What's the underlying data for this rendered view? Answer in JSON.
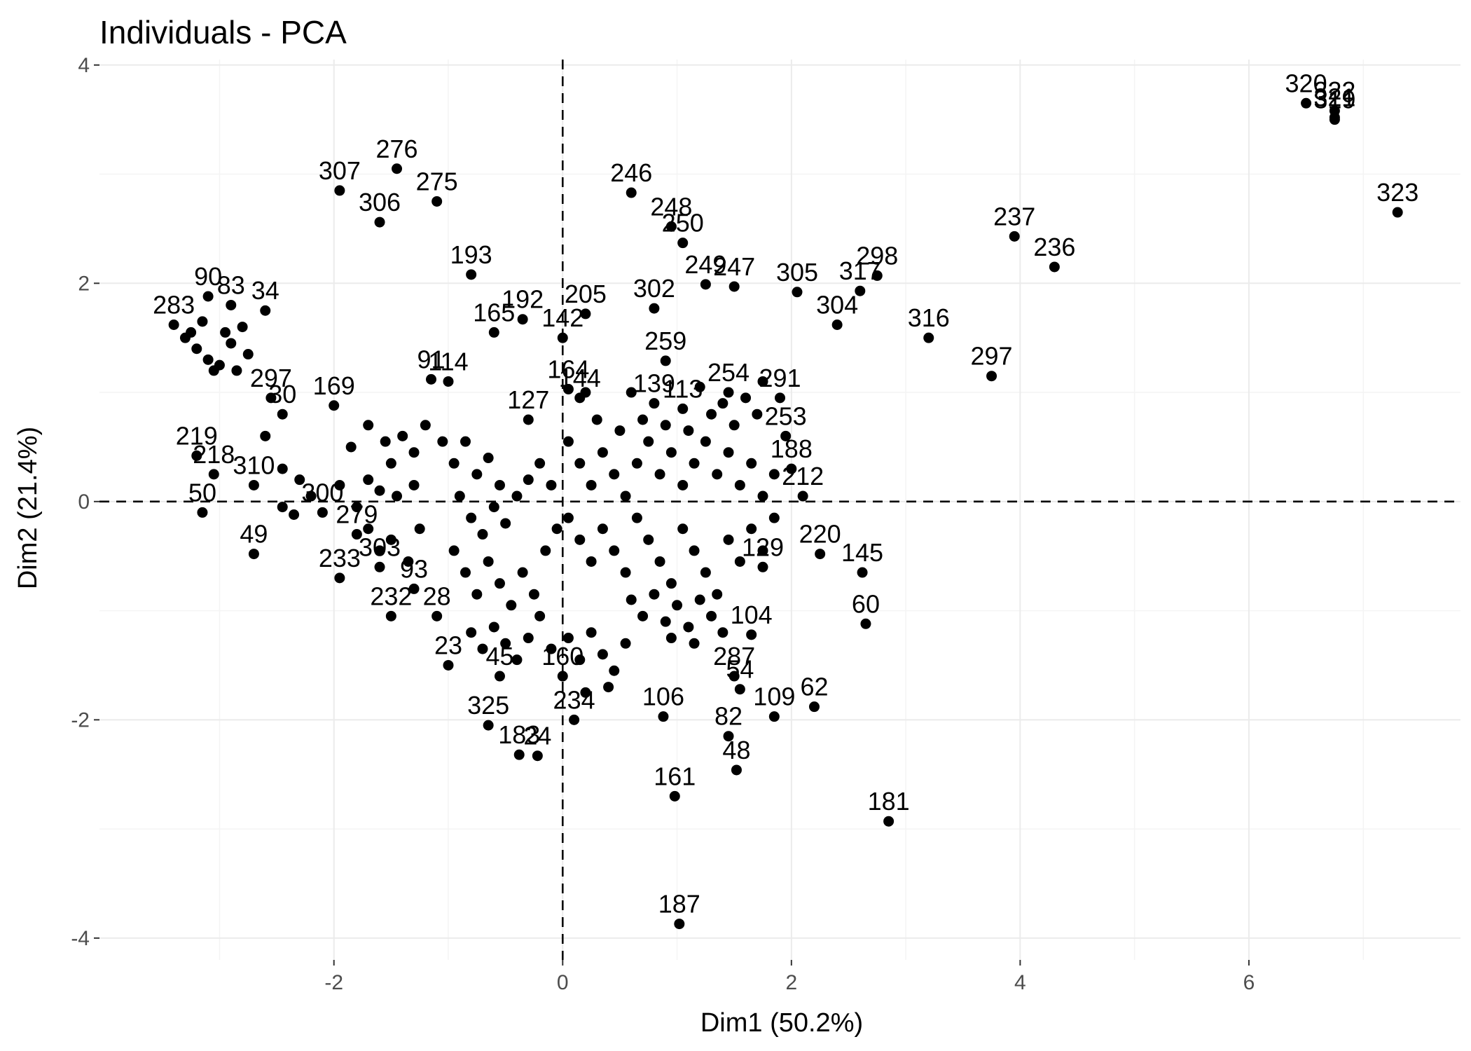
{
  "chart_data": {
    "type": "scatter",
    "title": "Individuals - PCA",
    "xlabel": "Dim1 (50.2%)",
    "ylabel": "Dim2 (21.4%)",
    "xlim": [
      -4.05,
      7.85
    ],
    "ylim": [
      -4.2,
      4.05
    ],
    "x_ticks": [
      -2,
      0,
      2,
      4,
      6
    ],
    "y_ticks": [
      -4,
      -2,
      0,
      2,
      4
    ],
    "x_tick_labels": [
      "-2",
      "0",
      "2",
      "4",
      "6"
    ],
    "y_tick_labels": [
      "-4",
      "-2",
      "0",
      "2",
      "4"
    ],
    "reference_lines": {
      "x": 0,
      "y": 0
    },
    "grid": true,
    "labeled_points": [
      {
        "label": "320",
        "x": 6.5,
        "y": 3.65
      },
      {
        "label": "322",
        "x": 6.75,
        "y": 3.58
      },
      {
        "label": "321",
        "x": 6.75,
        "y": 3.52
      },
      {
        "label": "319",
        "x": 6.75,
        "y": 3.5
      },
      {
        "label": "323",
        "x": 7.3,
        "y": 2.65
      },
      {
        "label": "237",
        "x": 3.95,
        "y": 2.43
      },
      {
        "label": "236",
        "x": 4.3,
        "y": 2.15
      },
      {
        "label": "298",
        "x": 2.75,
        "y": 2.07
      },
      {
        "label": "317",
        "x": 2.6,
        "y": 1.93
      },
      {
        "label": "305",
        "x": 2.05,
        "y": 1.92
      },
      {
        "label": "304",
        "x": 2.4,
        "y": 1.62
      },
      {
        "label": "316",
        "x": 3.2,
        "y": 1.5
      },
      {
        "label": "297",
        "x": 3.75,
        "y": 1.15
      },
      {
        "label": "246",
        "x": 0.6,
        "y": 2.83
      },
      {
        "label": "248",
        "x": 0.95,
        "y": 2.52
      },
      {
        "label": "250",
        "x": 1.05,
        "y": 2.37
      },
      {
        "label": "249",
        "x": 1.25,
        "y": 1.99
      },
      {
        "label": "247",
        "x": 1.5,
        "y": 1.97
      },
      {
        "label": "302",
        "x": 0.8,
        "y": 1.77
      },
      {
        "label": "259",
        "x": 0.9,
        "y": 1.29
      },
      {
        "label": "205",
        "x": 0.2,
        "y": 1.72
      },
      {
        "label": "192",
        "x": -0.35,
        "y": 1.67
      },
      {
        "label": "142",
        "x": 0.0,
        "y": 1.5
      },
      {
        "label": "165",
        "x": -0.6,
        "y": 1.55
      },
      {
        "label": "164",
        "x": 0.05,
        "y": 1.03
      },
      {
        "label": "193",
        "x": -0.8,
        "y": 2.08
      },
      {
        "label": "276",
        "x": -1.45,
        "y": 3.05
      },
      {
        "label": "307",
        "x": -1.95,
        "y": 2.85
      },
      {
        "label": "275",
        "x": -1.1,
        "y": 2.75
      },
      {
        "label": "306",
        "x": -1.6,
        "y": 2.56
      },
      {
        "label": "91",
        "x": -1.15,
        "y": 1.12
      },
      {
        "label": "90",
        "x": -3.1,
        "y": 1.88
      },
      {
        "label": "83",
        "x": -2.9,
        "y": 1.8
      },
      {
        "label": "34",
        "x": -2.6,
        "y": 1.75
      },
      {
        "label": "283",
        "x": -3.4,
        "y": 1.62
      },
      {
        "label": "219",
        "x": -3.2,
        "y": 0.42
      },
      {
        "label": "218",
        "x": -3.05,
        "y": 0.25
      },
      {
        "label": "310",
        "x": -2.7,
        "y": 0.15
      },
      {
        "label": "50",
        "x": -3.15,
        "y": -0.1
      },
      {
        "label": "49",
        "x": -2.7,
        "y": -0.48
      },
      {
        "label": "297b",
        "x": -2.55,
        "y": 0.95
      },
      {
        "label": "30",
        "x": -2.45,
        "y": 0.8
      },
      {
        "label": "169",
        "x": -2.0,
        "y": 0.88
      },
      {
        "label": "300",
        "x": -2.1,
        "y": -0.1
      },
      {
        "label": "279",
        "x": -1.8,
        "y": -0.3
      },
      {
        "label": "233",
        "x": -1.95,
        "y": -0.7
      },
      {
        "label": "232",
        "x": -1.5,
        "y": -1.05
      },
      {
        "label": "303",
        "x": -1.6,
        "y": -0.6
      },
      {
        "label": "93",
        "x": -1.3,
        "y": -0.8
      },
      {
        "label": "28",
        "x": -1.1,
        "y": -1.05
      },
      {
        "label": "23",
        "x": -1.0,
        "y": -1.5
      },
      {
        "label": "45",
        "x": -0.55,
        "y": -1.6
      },
      {
        "label": "325",
        "x": -0.65,
        "y": -2.05
      },
      {
        "label": "183",
        "x": -0.38,
        "y": -2.32
      },
      {
        "label": "24",
        "x": -0.22,
        "y": -2.33
      },
      {
        "label": "234",
        "x": 0.1,
        "y": -2.0
      },
      {
        "label": "160",
        "x": 0.0,
        "y": -1.6
      },
      {
        "label": "106",
        "x": 0.88,
        "y": -1.97
      },
      {
        "label": "161",
        "x": 0.98,
        "y": -2.7
      },
      {
        "label": "187",
        "x": 1.02,
        "y": -3.87
      },
      {
        "label": "82",
        "x": 1.45,
        "y": -2.15
      },
      {
        "label": "48",
        "x": 1.52,
        "y": -2.46
      },
      {
        "label": "109",
        "x": 1.85,
        "y": -1.97
      },
      {
        "label": "62",
        "x": 2.2,
        "y": -1.88
      },
      {
        "label": "104",
        "x": 1.65,
        "y": -1.22
      },
      {
        "label": "181",
        "x": 2.85,
        "y": -2.93
      },
      {
        "label": "145",
        "x": 2.62,
        "y": -0.65
      },
      {
        "label": "60",
        "x": 2.65,
        "y": -1.12
      },
      {
        "label": "220",
        "x": 2.25,
        "y": -0.48
      },
      {
        "label": "188",
        "x": 2.0,
        "y": 0.3
      },
      {
        "label": "212",
        "x": 2.1,
        "y": 0.05
      },
      {
        "label": "253",
        "x": 1.95,
        "y": 0.6
      },
      {
        "label": "291",
        "x": 1.9,
        "y": 0.95
      },
      {
        "label": "254",
        "x": 1.45,
        "y": 1.0
      },
      {
        "label": "129",
        "x": 1.75,
        "y": -0.6
      },
      {
        "label": "287",
        "x": 1.5,
        "y": -1.6
      },
      {
        "label": "54",
        "x": 1.55,
        "y": -1.72
      },
      {
        "label": "114",
        "x": -1.0,
        "y": 1.1
      },
      {
        "label": "127",
        "x": -0.3,
        "y": 0.75
      },
      {
        "label": "144",
        "x": 0.15,
        "y": 0.95
      },
      {
        "label": "139",
        "x": 0.8,
        "y": 0.9
      },
      {
        "label": "113",
        "x": 1.05,
        "y": 0.85
      }
    ],
    "unlabeled_points": [
      [
        -3.3,
        1.5
      ],
      [
        -3.2,
        1.4
      ],
      [
        -3.1,
        1.3
      ],
      [
        -3.0,
        1.25
      ],
      [
        -2.95,
        1.55
      ],
      [
        -2.8,
        1.6
      ],
      [
        -3.05,
        1.2
      ],
      [
        -2.85,
        1.2
      ],
      [
        -3.15,
        1.65
      ],
      [
        -2.75,
        1.35
      ],
      [
        -3.25,
        1.55
      ],
      [
        -2.9,
        1.45
      ],
      [
        -2.6,
        0.6
      ],
      [
        -2.45,
        0.3
      ],
      [
        -2.3,
        0.2
      ],
      [
        -2.45,
        -0.05
      ],
      [
        -2.35,
        -0.12
      ],
      [
        -2.2,
        0.05
      ],
      [
        -1.95,
        0.15
      ],
      [
        -1.85,
        0.5
      ],
      [
        -1.7,
        0.7
      ],
      [
        -1.55,
        0.55
      ],
      [
        -1.5,
        0.35
      ],
      [
        -1.4,
        0.6
      ],
      [
        -1.3,
        0.45
      ],
      [
        -1.2,
        0.7
      ],
      [
        -1.7,
        0.2
      ],
      [
        -1.6,
        0.1
      ],
      [
        -1.45,
        0.05
      ],
      [
        -1.3,
        0.15
      ],
      [
        -1.8,
        -0.05
      ],
      [
        -1.7,
        -0.25
      ],
      [
        -1.6,
        -0.45
      ],
      [
        -1.5,
        -0.35
      ],
      [
        -1.35,
        -0.55
      ],
      [
        -1.25,
        -0.25
      ],
      [
        -1.05,
        0.55
      ],
      [
        -0.95,
        0.35
      ],
      [
        -0.85,
        0.55
      ],
      [
        -0.75,
        0.25
      ],
      [
        -0.65,
        0.4
      ],
      [
        -0.55,
        0.15
      ],
      [
        -0.9,
        0.05
      ],
      [
        -0.8,
        -0.15
      ],
      [
        -0.7,
        -0.3
      ],
      [
        -0.6,
        -0.05
      ],
      [
        -0.5,
        -0.2
      ],
      [
        -0.4,
        0.05
      ],
      [
        -0.3,
        0.2
      ],
      [
        -0.2,
        0.35
      ],
      [
        -0.1,
        0.15
      ],
      [
        -0.95,
        -0.45
      ],
      [
        -0.85,
        -0.65
      ],
      [
        -0.75,
        -0.85
      ],
      [
        -0.65,
        -0.55
      ],
      [
        -0.55,
        -0.75
      ],
      [
        -0.45,
        -0.95
      ],
      [
        -0.35,
        -0.65
      ],
      [
        -0.25,
        -0.85
      ],
      [
        -0.15,
        -0.45
      ],
      [
        -0.05,
        -0.25
      ],
      [
        -0.8,
        -1.2
      ],
      [
        -0.7,
        -1.35
      ],
      [
        -0.6,
        -1.15
      ],
      [
        -0.5,
        -1.3
      ],
      [
        -0.4,
        -1.45
      ],
      [
        -0.3,
        -1.25
      ],
      [
        -0.2,
        -1.05
      ],
      [
        -0.1,
        -1.35
      ],
      [
        0.05,
        -1.25
      ],
      [
        0.15,
        -1.45
      ],
      [
        0.25,
        -1.2
      ],
      [
        0.35,
        -1.4
      ],
      [
        0.45,
        -1.55
      ],
      [
        0.55,
        -1.3
      ],
      [
        0.2,
        -1.75
      ],
      [
        0.4,
        -1.7
      ],
      [
        0.05,
        0.55
      ],
      [
        0.15,
        0.35
      ],
      [
        0.25,
        0.15
      ],
      [
        0.35,
        0.45
      ],
      [
        0.45,
        0.25
      ],
      [
        0.55,
        0.05
      ],
      [
        0.65,
        0.35
      ],
      [
        0.75,
        0.55
      ],
      [
        0.85,
        0.25
      ],
      [
        0.95,
        0.45
      ],
      [
        1.05,
        0.15
      ],
      [
        1.15,
        0.35
      ],
      [
        1.25,
        0.55
      ],
      [
        1.35,
        0.25
      ],
      [
        1.45,
        0.45
      ],
      [
        1.55,
        0.15
      ],
      [
        1.65,
        0.35
      ],
      [
        1.75,
        0.05
      ],
      [
        1.85,
        0.25
      ],
      [
        0.05,
        -0.15
      ],
      [
        0.15,
        -0.35
      ],
      [
        0.25,
        -0.55
      ],
      [
        0.35,
        -0.25
      ],
      [
        0.45,
        -0.45
      ],
      [
        0.55,
        -0.65
      ],
      [
        0.65,
        -0.15
      ],
      [
        0.75,
        -0.35
      ],
      [
        0.85,
        -0.55
      ],
      [
        0.95,
        -0.75
      ],
      [
        1.05,
        -0.25
      ],
      [
        1.15,
        -0.45
      ],
      [
        1.25,
        -0.65
      ],
      [
        1.35,
        -0.85
      ],
      [
        1.45,
        -0.35
      ],
      [
        1.55,
        -0.55
      ],
      [
        1.65,
        -0.25
      ],
      [
        1.75,
        -0.45
      ],
      [
        1.85,
        -0.15
      ],
      [
        0.6,
        -0.9
      ],
      [
        0.7,
        -1.05
      ],
      [
        0.8,
        -0.85
      ],
      [
        0.9,
        -1.1
      ],
      [
        1.0,
        -0.95
      ],
      [
        1.1,
        -1.15
      ],
      [
        1.2,
        -0.9
      ],
      [
        1.3,
        -1.05
      ],
      [
        1.4,
        -1.2
      ],
      [
        0.95,
        -1.25
      ],
      [
        1.15,
        -1.3
      ],
      [
        0.3,
        0.75
      ],
      [
        0.5,
        0.65
      ],
      [
        0.7,
        0.75
      ],
      [
        0.9,
        0.7
      ],
      [
        1.1,
        0.65
      ],
      [
        1.3,
        0.8
      ],
      [
        1.5,
        0.7
      ],
      [
        1.7,
        0.8
      ],
      [
        1.6,
        0.95
      ],
      [
        1.4,
        0.9
      ],
      [
        0.2,
        1.0
      ],
      [
        0.6,
        1.0
      ],
      [
        1.2,
        1.05
      ],
      [
        1.75,
        1.1
      ]
    ]
  }
}
